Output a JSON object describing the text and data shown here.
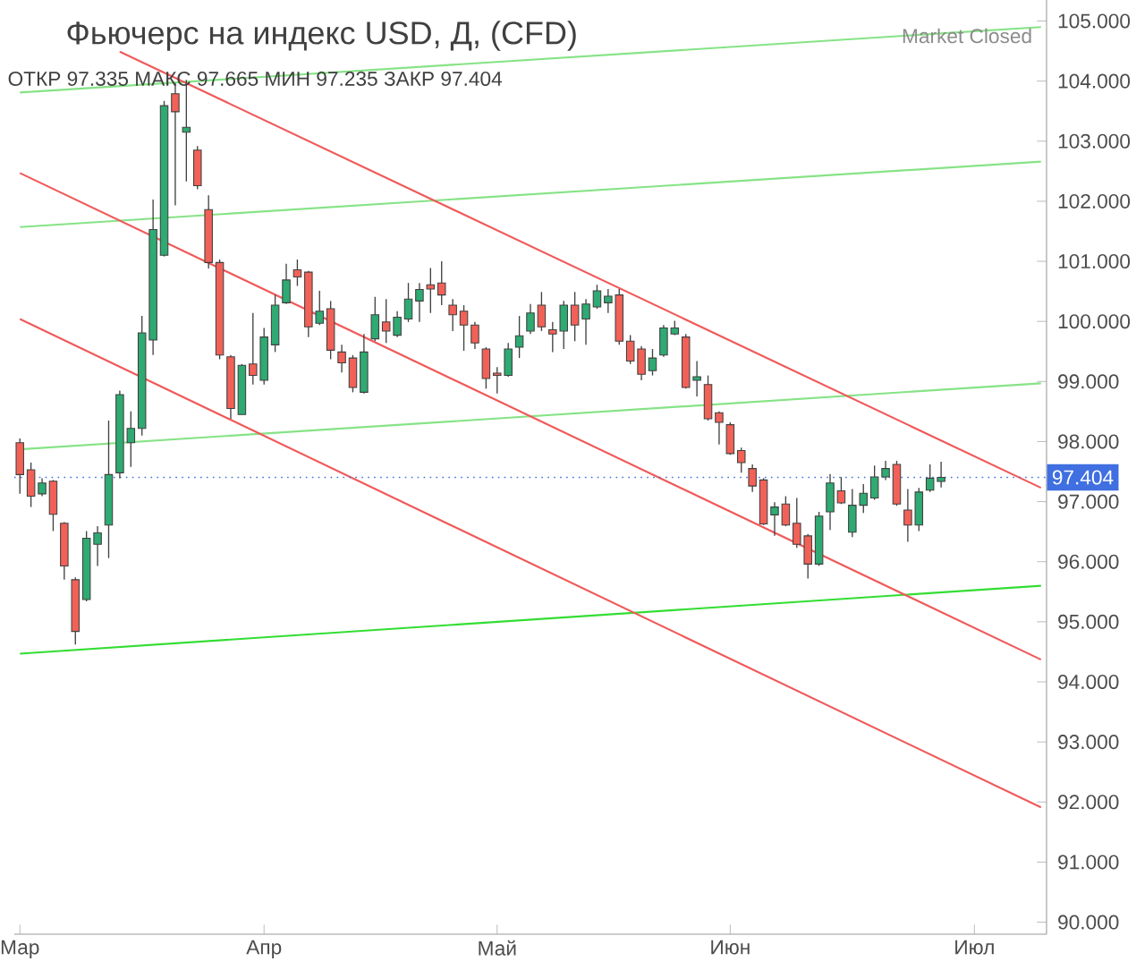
{
  "chart_data": {
    "type": "candlestick",
    "title": "Фьючерс на индекс USD, Д, (CFD)",
    "annotations": [
      "ОТКР 97.335  МАКС 97.665  МИН 97.235  ЗАКР 97.404",
      "Market Closed"
    ],
    "categories": [
      "Мар",
      null,
      null,
      null,
      null,
      null,
      null,
      null,
      null,
      null,
      null,
      null,
      null,
      null,
      null,
      null,
      null,
      null,
      null,
      null,
      null,
      null,
      "Апр",
      null,
      null,
      null,
      null,
      null,
      null,
      null,
      null,
      null,
      null,
      null,
      null,
      null,
      null,
      null,
      null,
      null,
      null,
      null,
      null,
      "Май",
      null,
      null,
      null,
      null,
      null,
      null,
      null,
      null,
      null,
      null,
      null,
      null,
      null,
      null,
      null,
      null,
      null,
      null,
      null,
      null,
      "Июн",
      null,
      null,
      null,
      null,
      null,
      null,
      null,
      null,
      null,
      null,
      null,
      null,
      null,
      null,
      null,
      null,
      null,
      null,
      null,
      null,
      null,
      "Июл",
      null,
      null,
      null,
      null,
      null,
      null
    ],
    "ohlc": [
      [
        97.98,
        98.05,
        97.13,
        97.45
      ],
      [
        97.53,
        97.65,
        96.91,
        97.09
      ],
      [
        97.13,
        97.39,
        97.09,
        97.31
      ],
      [
        97.34,
        97.36,
        96.51,
        96.79
      ],
      [
        96.64,
        96.66,
        95.7,
        95.93
      ],
      [
        95.7,
        95.74,
        94.62,
        94.84
      ],
      [
        95.37,
        96.51,
        95.34,
        96.39
      ],
      [
        96.29,
        96.59,
        95.93,
        96.48
      ],
      [
        96.61,
        98.35,
        96.06,
        97.45
      ],
      [
        97.48,
        98.85,
        97.39,
        98.78
      ],
      [
        97.98,
        98.5,
        97.58,
        98.22
      ],
      [
        98.22,
        100.09,
        98.1,
        99.81
      ],
      [
        99.69,
        102.03,
        99.44,
        101.53
      ],
      [
        101.1,
        103.67,
        101.08,
        103.59
      ],
      [
        103.79,
        103.97,
        101.93,
        103.49
      ],
      [
        103.15,
        104.02,
        102.33,
        103.23
      ],
      [
        102.85,
        102.92,
        102.2,
        102.26
      ],
      [
        101.86,
        102.1,
        100.88,
        100.98
      ],
      [
        100.98,
        101.03,
        99.37,
        99.44
      ],
      [
        99.41,
        99.44,
        98.38,
        98.55
      ],
      [
        98.45,
        99.29,
        98.45,
        99.27
      ],
      [
        99.29,
        100.14,
        98.95,
        99.1
      ],
      [
        99.02,
        99.89,
        98.95,
        99.74
      ],
      [
        99.61,
        100.44,
        99.49,
        100.27
      ],
      [
        100.31,
        100.96,
        100.29,
        100.69
      ],
      [
        100.86,
        101.03,
        100.59,
        100.74
      ],
      [
        100.82,
        100.84,
        99.74,
        99.91
      ],
      [
        99.97,
        100.51,
        99.94,
        100.17
      ],
      [
        100.21,
        100.34,
        99.37,
        99.52
      ],
      [
        99.49,
        99.61,
        99.15,
        99.31
      ],
      [
        99.39,
        99.44,
        98.82,
        98.9
      ],
      [
        98.82,
        99.79,
        98.8,
        99.49
      ],
      [
        99.71,
        100.41,
        99.67,
        100.11
      ],
      [
        99.99,
        100.37,
        99.64,
        99.84
      ],
      [
        99.77,
        100.17,
        99.74,
        100.07
      ],
      [
        100.04,
        100.64,
        99.99,
        100.37
      ],
      [
        100.34,
        100.64,
        99.99,
        100.53
      ],
      [
        100.61,
        100.89,
        100.14,
        100.54
      ],
      [
        100.64,
        101.0,
        100.27,
        100.44
      ],
      [
        100.27,
        100.37,
        99.84,
        100.11
      ],
      [
        100.17,
        100.27,
        99.51,
        99.94
      ],
      [
        99.94,
        99.99,
        99.54,
        99.64
      ],
      [
        99.54,
        99.57,
        98.88,
        99.05
      ],
      [
        99.14,
        99.24,
        98.8,
        99.1
      ],
      [
        99.1,
        99.64,
        99.08,
        99.54
      ],
      [
        99.57,
        100.09,
        99.39,
        99.76
      ],
      [
        99.84,
        100.29,
        99.79,
        100.14
      ],
      [
        100.27,
        100.49,
        99.84,
        99.91
      ],
      [
        99.86,
        99.99,
        99.49,
        99.79
      ],
      [
        99.84,
        100.34,
        99.54,
        100.27
      ],
      [
        100.27,
        100.49,
        99.67,
        99.94
      ],
      [
        100.04,
        100.37,
        99.61,
        100.29
      ],
      [
        100.24,
        100.61,
        100.21,
        100.51
      ],
      [
        100.31,
        100.54,
        100.14,
        100.42
      ],
      [
        100.44,
        100.54,
        99.61,
        99.67
      ],
      [
        99.67,
        99.77,
        99.29,
        99.34
      ],
      [
        99.54,
        99.59,
        99.02,
        99.12
      ],
      [
        99.18,
        99.54,
        99.1,
        99.39
      ],
      [
        99.44,
        99.94,
        99.41,
        99.89
      ],
      [
        99.79,
        100.01,
        99.77,
        99.89
      ],
      [
        99.74,
        99.79,
        98.88,
        98.9
      ],
      [
        99.02,
        99.34,
        98.75,
        99.08
      ],
      [
        98.95,
        99.1,
        98.35,
        98.38
      ],
      [
        98.48,
        98.5,
        97.95,
        98.32
      ],
      [
        98.28,
        98.32,
        97.78,
        97.8
      ],
      [
        97.85,
        97.9,
        97.48,
        97.65
      ],
      [
        97.55,
        97.62,
        97.16,
        97.26
      ],
      [
        97.36,
        97.39,
        96.61,
        96.63
      ],
      [
        96.78,
        96.99,
        96.43,
        96.91
      ],
      [
        96.96,
        97.09,
        96.59,
        96.61
      ],
      [
        96.64,
        97.06,
        96.23,
        96.29
      ],
      [
        96.43,
        96.46,
        95.72,
        95.96
      ],
      [
        95.96,
        96.83,
        95.93,
        96.76
      ],
      [
        96.83,
        97.46,
        96.53,
        97.31
      ],
      [
        97.18,
        97.41,
        96.96,
        96.98
      ],
      [
        96.49,
        97.21,
        96.41,
        96.94
      ],
      [
        96.94,
        97.29,
        96.81,
        97.14
      ],
      [
        97.06,
        97.6,
        97.03,
        97.41
      ],
      [
        97.41,
        97.68,
        97.36,
        97.55
      ],
      [
        97.62,
        97.68,
        96.93,
        96.96
      ],
      [
        96.86,
        97.21,
        96.33,
        96.61
      ],
      [
        96.61,
        97.23,
        96.51,
        97.16
      ],
      [
        97.19,
        97.62,
        97.16,
        97.39
      ],
      [
        97.335,
        97.665,
        97.235,
        97.404
      ],
      null,
      null,
      null,
      null,
      null,
      null,
      null,
      null,
      null
    ],
    "colors": [
      "#f26157",
      "#f26157",
      "#2eaa72",
      "#f26157",
      "#f26157",
      "#f26157",
      "#2eaa72",
      "#2eaa72",
      "#2eaa72",
      "#2eaa72",
      "#2eaa72",
      "#2eaa72",
      "#2eaa72",
      "#2eaa72",
      "#f26157",
      "#2eaa72",
      "#f26157",
      "#f26157",
      "#f26157",
      "#f26157",
      "#2eaa72",
      "#f26157",
      "#2eaa72",
      "#2eaa72",
      "#2eaa72",
      "#f26157",
      "#f26157",
      "#2eaa72",
      "#f26157",
      "#f26157",
      "#f26157",
      "#2eaa72",
      "#2eaa72",
      "#f26157",
      "#2eaa72",
      "#2eaa72",
      "#2eaa72",
      "#f26157",
      "#f26157",
      "#f26157",
      "#f26157",
      "#f26157",
      "#f26157",
      "#f26157",
      "#2eaa72",
      "#2eaa72",
      "#2eaa72",
      "#f26157",
      "#f26157",
      "#2eaa72",
      "#f26157",
      "#2eaa72",
      "#2eaa72",
      "#2eaa72",
      "#f26157",
      "#f26157",
      "#f26157",
      "#2eaa72",
      "#2eaa72",
      "#2eaa72",
      "#f26157",
      "#2eaa72",
      "#f26157",
      "#f26157",
      "#f26157",
      "#f26157",
      "#f26157",
      "#f26157",
      "#2eaa72",
      "#f26157",
      "#f26157",
      "#f26157",
      "#2eaa72",
      "#2eaa72",
      "#f26157",
      "#2eaa72",
      "#2eaa72",
      "#2eaa72",
      "#2eaa72",
      "#f26157",
      "#f26157",
      "#2eaa72",
      "#2eaa72",
      "#2eaa72",
      null,
      null,
      null,
      null,
      null,
      null,
      null,
      null,
      null
    ],
    "series": [
      {
        "type": "line",
        "values": [
          103.81,
          null,
          null,
          null,
          null,
          null,
          null,
          null,
          null,
          null,
          null,
          null,
          null,
          null,
          null,
          null,
          null,
          null,
          null,
          null,
          null,
          null,
          null,
          null,
          null,
          null,
          null,
          null,
          null,
          null,
          null,
          null,
          null,
          null,
          null,
          null,
          null,
          null,
          null,
          null,
          null,
          null,
          null,
          null,
          null,
          null,
          null,
          null,
          null,
          null,
          null,
          null,
          null,
          null,
          null,
          null,
          null,
          null,
          null,
          null,
          null,
          null,
          null,
          null,
          null,
          null,
          null,
          null,
          null,
          null,
          null,
          null,
          null,
          null,
          null,
          null,
          null,
          null,
          null,
          null,
          null,
          null,
          null,
          null,
          null,
          null,
          null,
          null,
          null,
          null,
          null,
          null,
          104.9
        ],
        "color": "#86e386"
      },
      {
        "type": "line",
        "values": [
          101.57,
          null,
          null,
          null,
          null,
          null,
          null,
          null,
          null,
          null,
          null,
          null,
          null,
          null,
          null,
          null,
          null,
          null,
          null,
          null,
          null,
          null,
          null,
          null,
          null,
          null,
          null,
          null,
          null,
          null,
          null,
          null,
          null,
          null,
          null,
          null,
          null,
          null,
          null,
          null,
          null,
          null,
          null,
          null,
          null,
          null,
          null,
          null,
          null,
          null,
          null,
          null,
          null,
          null,
          null,
          null,
          null,
          null,
          null,
          null,
          null,
          null,
          null,
          null,
          null,
          null,
          null,
          null,
          null,
          null,
          null,
          null,
          null,
          null,
          null,
          null,
          null,
          null,
          null,
          null,
          null,
          null,
          null,
          null,
          null,
          null,
          null,
          null,
          null,
          null,
          null,
          null,
          102.66
        ],
        "color": "#86e386"
      },
      {
        "type": "line",
        "values": [
          97.87,
          null,
          null,
          null,
          null,
          null,
          null,
          null,
          null,
          null,
          null,
          null,
          null,
          null,
          null,
          null,
          null,
          null,
          null,
          null,
          null,
          null,
          null,
          null,
          null,
          null,
          null,
          null,
          null,
          null,
          null,
          null,
          null,
          null,
          null,
          null,
          null,
          null,
          null,
          null,
          null,
          null,
          null,
          null,
          null,
          null,
          null,
          null,
          null,
          null,
          null,
          null,
          null,
          null,
          null,
          null,
          null,
          null,
          null,
          null,
          null,
          null,
          null,
          null,
          null,
          null,
          null,
          null,
          null,
          null,
          null,
          null,
          null,
          null,
          null,
          null,
          null,
          null,
          null,
          null,
          null,
          null,
          null,
          null,
          null,
          null,
          null,
          null,
          null,
          null,
          null,
          null,
          98.97
        ],
        "color": "#86e386"
      },
      {
        "type": "line",
        "values": [
          94.47,
          null,
          null,
          null,
          null,
          null,
          null,
          null,
          null,
          null,
          null,
          null,
          null,
          null,
          null,
          null,
          null,
          null,
          null,
          null,
          null,
          null,
          null,
          null,
          null,
          null,
          null,
          null,
          null,
          null,
          null,
          null,
          null,
          null,
          null,
          null,
          null,
          null,
          null,
          null,
          null,
          null,
          null,
          null,
          null,
          null,
          null,
          null,
          null,
          null,
          null,
          null,
          null,
          null,
          null,
          null,
          null,
          null,
          null,
          null,
          null,
          null,
          null,
          null,
          null,
          null,
          null,
          null,
          null,
          null,
          null,
          null,
          null,
          null,
          null,
          null,
          null,
          null,
          null,
          null,
          null,
          null,
          null,
          null,
          null,
          null,
          null,
          null,
          null,
          null,
          null,
          null,
          95.6
        ],
        "color": "#33dd33"
      },
      {
        "type": "line",
        "values": [
          null,
          null,
          null,
          null,
          null,
          null,
          null,
          null,
          null,
          104.49,
          null,
          null,
          null,
          null,
          null,
          null,
          null,
          null,
          null,
          null,
          null,
          null,
          null,
          null,
          null,
          null,
          null,
          null,
          null,
          null,
          null,
          null,
          null,
          null,
          null,
          null,
          null,
          null,
          null,
          null,
          null,
          null,
          null,
          null,
          null,
          null,
          null,
          null,
          null,
          null,
          null,
          null,
          null,
          null,
          null,
          null,
          null,
          null,
          null,
          null,
          null,
          null,
          null,
          null,
          null,
          null,
          null,
          null,
          null,
          null,
          null,
          null,
          null,
          null,
          null,
          null,
          null,
          null,
          null,
          null,
          null,
          null,
          null,
          null,
          null,
          null,
          null,
          null,
          null,
          null,
          null,
          null,
          97.23
        ],
        "color": "#f05a5a"
      },
      {
        "type": "line",
        "values": [
          102.47,
          null,
          null,
          null,
          null,
          null,
          null,
          null,
          null,
          null,
          null,
          null,
          null,
          null,
          null,
          null,
          null,
          null,
          null,
          null,
          null,
          null,
          null,
          null,
          null,
          null,
          null,
          null,
          null,
          null,
          null,
          null,
          null,
          null,
          null,
          null,
          null,
          null,
          null,
          null,
          null,
          null,
          null,
          null,
          null,
          null,
          null,
          null,
          null,
          null,
          null,
          null,
          null,
          null,
          null,
          null,
          null,
          null,
          null,
          null,
          null,
          null,
          null,
          null,
          null,
          null,
          null,
          null,
          null,
          null,
          null,
          null,
          null,
          null,
          null,
          null,
          null,
          null,
          null,
          null,
          null,
          null,
          null,
          null,
          null,
          null,
          null,
          null,
          null,
          null,
          null,
          null,
          94.37
        ],
        "color": "#f05a5a"
      },
      {
        "type": "line",
        "values": [
          100.04,
          null,
          null,
          null,
          null,
          null,
          null,
          null,
          null,
          null,
          null,
          null,
          null,
          null,
          null,
          null,
          null,
          null,
          null,
          null,
          null,
          null,
          null,
          null,
          null,
          null,
          null,
          null,
          null,
          null,
          null,
          null,
          null,
          null,
          null,
          null,
          null,
          null,
          null,
          null,
          null,
          null,
          null,
          null,
          null,
          null,
          null,
          null,
          null,
          null,
          null,
          null,
          null,
          null,
          null,
          null,
          null,
          null,
          null,
          null,
          null,
          null,
          null,
          null,
          null,
          null,
          null,
          null,
          null,
          null,
          null,
          null,
          null,
          null,
          null,
          null,
          null,
          null,
          null,
          null,
          null,
          null,
          null,
          null,
          null,
          null,
          null,
          null,
          null,
          null,
          null,
          null,
          91.91
        ],
        "color": "#f05a5a"
      }
    ],
    "ref_lines": [
      {
        "axis": "y",
        "value": 97.404,
        "label": "97.404",
        "color": "#3f6fe0",
        "line_style": "dotted"
      }
    ],
    "ylim": [
      89.8,
      105.35
    ],
    "yticks": [
      {
        "value": 90,
        "label": "90.000"
      },
      {
        "value": 91,
        "label": "91.000"
      },
      {
        "value": 92,
        "label": "92.000"
      },
      {
        "value": 93,
        "label": "93.000"
      },
      {
        "value": 94,
        "label": "94.000"
      },
      {
        "value": 95,
        "label": "95.000"
      },
      {
        "value": 96,
        "label": "96.000"
      },
      {
        "value": 97,
        "label": "97.000"
      },
      {
        "value": 98,
        "label": "98.000"
      },
      {
        "value": 99,
        "label": "99.000"
      },
      {
        "value": 100,
        "label": "100.000"
      },
      {
        "value": 101,
        "label": "101.000"
      },
      {
        "value": 102,
        "label": "102.000"
      },
      {
        "value": 103,
        "label": "103.000"
      },
      {
        "value": 104,
        "label": "104.000"
      },
      {
        "value": 105,
        "label": "105.000"
      }
    ]
  }
}
